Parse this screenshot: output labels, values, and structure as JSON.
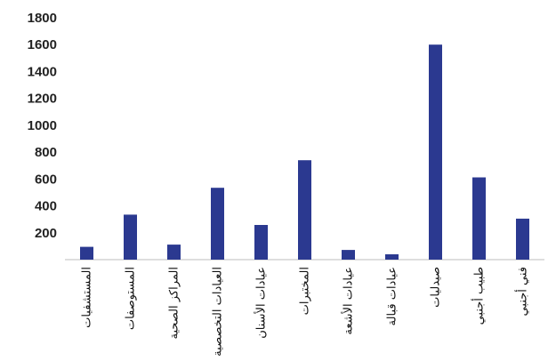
{
  "chart_data": {
    "type": "bar",
    "title": "",
    "xlabel": "",
    "ylabel": "",
    "ylim": [
      0,
      1800
    ],
    "yticks": [
      200,
      400,
      600,
      800,
      1000,
      1200,
      1400,
      1600,
      1800
    ],
    "grid": false,
    "bar_color": "#2b3990",
    "categories": [
      "المستشفيات",
      "المستوصفات",
      "المراكز الصحية",
      "العيادات التخصصية",
      "عيادات الأسنان",
      "المختبرات",
      "عيادات الأشعة",
      "عيادات قبالة",
      "صيدليات",
      "طبيب أجنبي",
      "فني أجنبي"
    ],
    "values": [
      95,
      335,
      112,
      535,
      258,
      740,
      72,
      40,
      1600,
      612,
      305
    ]
  }
}
